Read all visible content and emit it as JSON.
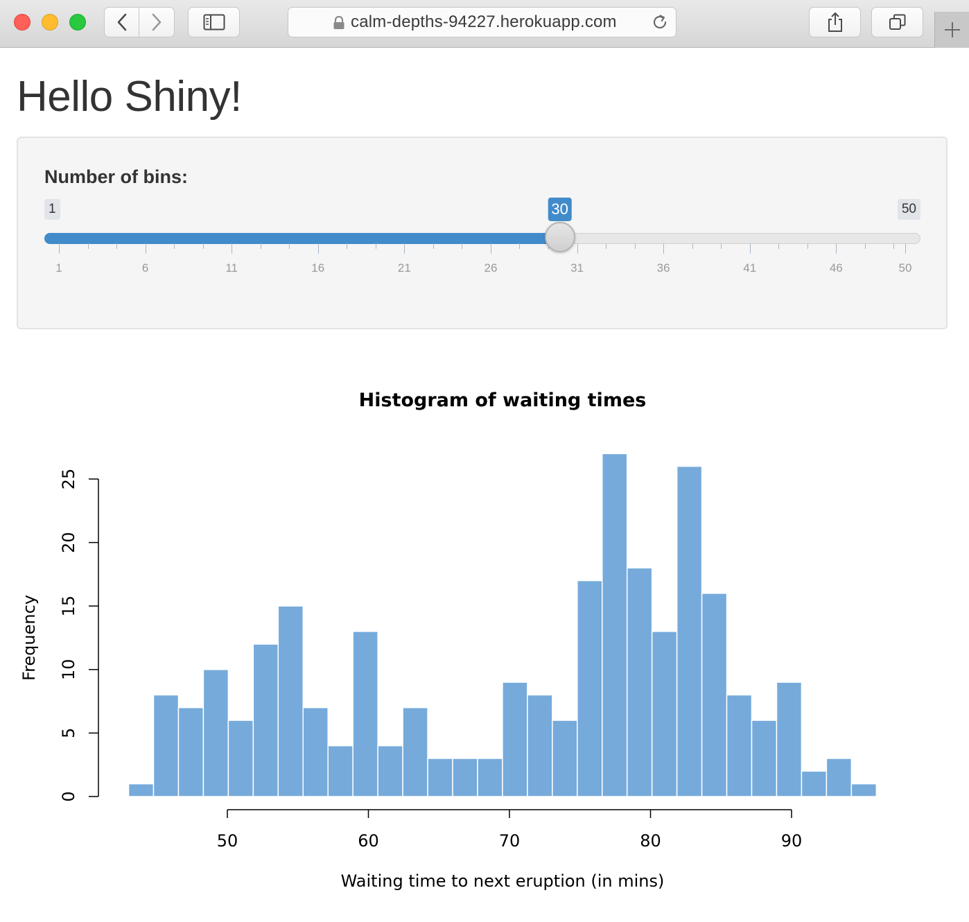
{
  "browser": {
    "url": "calm-depths-94227.herokuapp.com"
  },
  "page": {
    "title": "Hello Shiny!"
  },
  "slider": {
    "label": "Number of bins:",
    "min": 1,
    "max": 50,
    "value": 30,
    "min_label": "1",
    "max_label": "50",
    "value_label": "30",
    "grid_labels": [
      "1",
      "6",
      "11",
      "16",
      "21",
      "26",
      "31",
      "36",
      "41",
      "46",
      "50"
    ],
    "accent_color": "#428bca"
  },
  "chart_data": {
    "type": "bar",
    "title": "Histogram of waiting times",
    "xlabel": "Waiting time to next eruption (in mins)",
    "ylabel": "Frequency",
    "bin_start": 43,
    "bin_width": 1.767,
    "values": [
      1,
      8,
      7,
      10,
      6,
      12,
      15,
      7,
      4,
      13,
      4,
      7,
      3,
      3,
      3,
      9,
      8,
      6,
      17,
      27,
      18,
      13,
      26,
      16,
      8,
      6,
      9,
      2,
      3,
      1
    ],
    "xticks": [
      50,
      60,
      70,
      80,
      90
    ],
    "yticks": [
      0,
      5,
      10,
      15,
      20,
      25
    ],
    "bar_color": "#75aadb",
    "bar_border": "#ffffff"
  }
}
